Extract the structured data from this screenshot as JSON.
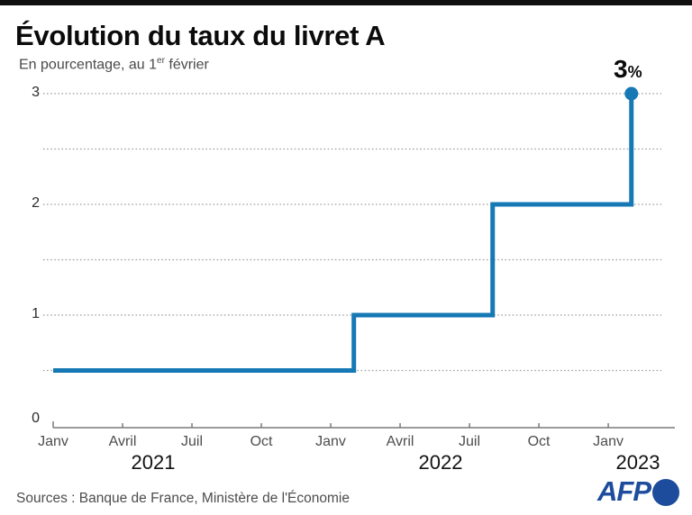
{
  "header": {
    "title": "Évolution du taux du livret A",
    "subtitle_prefix": "En pourcentage, au 1",
    "subtitle_sup": "er",
    "subtitle_suffix": " février"
  },
  "chart_data": {
    "type": "line",
    "subtype": "step",
    "title": "Évolution du taux du livret A",
    "ylabel": "En pourcentage",
    "ylim": [
      0,
      3
    ],
    "grid": "dotted horizontal at every 0.5",
    "line_color": "#1678b4",
    "series": [
      {
        "name": "Taux du livret A",
        "points": [
          {
            "date": "Janv 2021",
            "month_index": 0,
            "value": 0.5
          },
          {
            "date": "Févr 2022",
            "month_index": 13,
            "value": 1
          },
          {
            "date": "Août 2022",
            "month_index": 19,
            "value": 2
          },
          {
            "date": "Févr 2023",
            "month_index": 25,
            "value": 3
          }
        ]
      }
    ],
    "y_axis_labels": [
      {
        "value": 3,
        "label": "3"
      },
      {
        "value": 2,
        "label": "2"
      },
      {
        "value": 1,
        "label": "1"
      },
      {
        "value": 0,
        "label": "0"
      }
    ],
    "y_gridlines": [
      0.5,
      1,
      1.5,
      2,
      2.5,
      3
    ],
    "x_ticks": [
      {
        "label": "Janv",
        "month_index": 0
      },
      {
        "label": "Avril",
        "month_index": 3
      },
      {
        "label": "Juil",
        "month_index": 6
      },
      {
        "label": "Oct",
        "month_index": 9
      },
      {
        "label": "Janv",
        "month_index": 12
      },
      {
        "label": "Avril",
        "month_index": 15
      },
      {
        "label": "Juil",
        "month_index": 18
      },
      {
        "label": "Oct",
        "month_index": 21
      },
      {
        "label": "Janv",
        "month_index": 24
      }
    ],
    "year_labels": [
      {
        "label": "2021"
      },
      {
        "label": "2022"
      },
      {
        "label": "2023"
      }
    ],
    "end_label": {
      "value": "3",
      "unit": "%"
    }
  },
  "footer": {
    "sources": "Sources : Banque de France, Ministère de l'Économie",
    "logo_text": "AFP"
  },
  "colors": {
    "line": "#1678b4",
    "marker": "#1678b4",
    "logo_blue": "#1d4c9c",
    "topbar": "#101010",
    "gridline": "#999999",
    "axis": "#7a7a7a"
  }
}
